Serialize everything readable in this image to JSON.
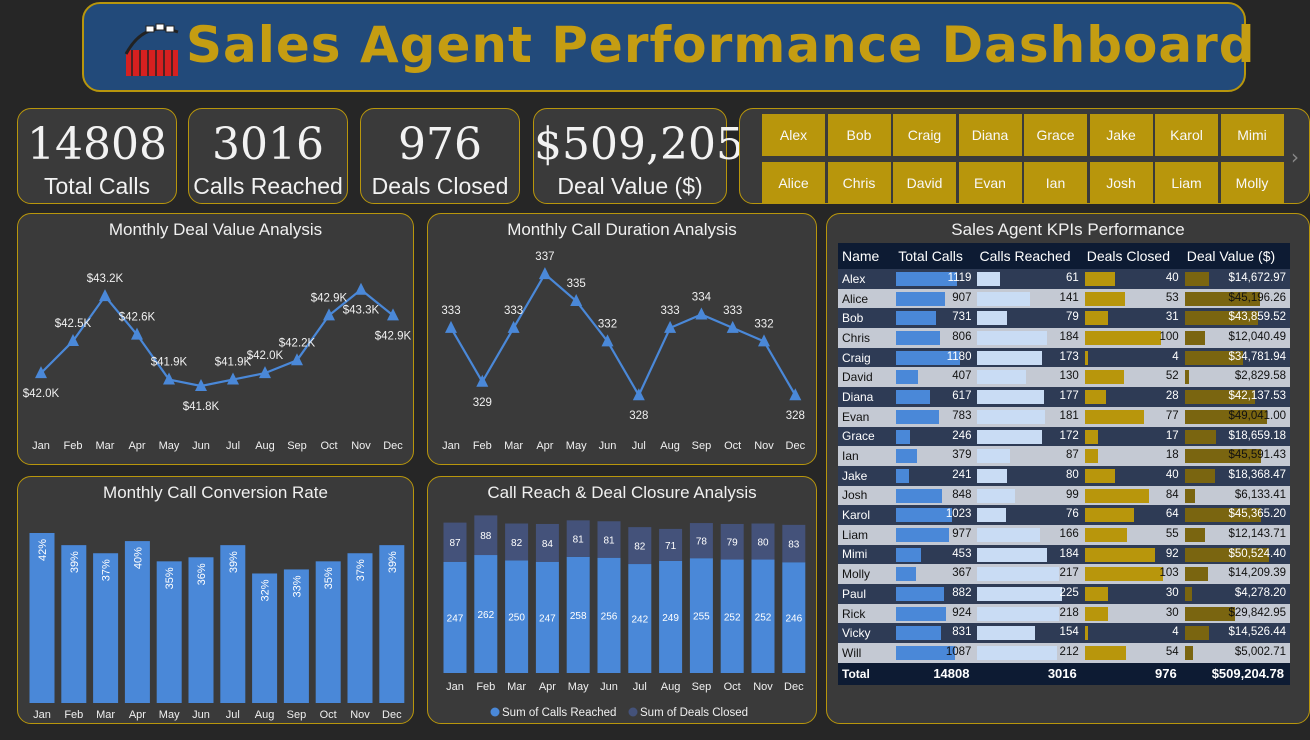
{
  "title": "Sales Agent Performance Dashboard",
  "kpis": [
    {
      "value": "14808",
      "label": "Total Calls"
    },
    {
      "value": "3016",
      "label": "Calls Reached"
    },
    {
      "value": "976",
      "label": "Deals Closed"
    },
    {
      "value": "$509,205",
      "label": "Deal Value ($)"
    }
  ],
  "agents": [
    "Alex",
    "Bob",
    "Craig",
    "Diana",
    "Grace",
    "Jake",
    "Karol",
    "Mimi",
    "Alice",
    "Chris",
    "David",
    "Evan",
    "Ian",
    "Josh",
    "Liam",
    "Molly"
  ],
  "months": [
    "Jan",
    "Feb",
    "Mar",
    "Apr",
    "May",
    "Jun",
    "Jul",
    "Aug",
    "Sep",
    "Oct",
    "Nov",
    "Dec"
  ],
  "chart_data": [
    {
      "type": "line",
      "title": "Monthly Deal Value Analysis",
      "categories": [
        "Jan",
        "Feb",
        "Mar",
        "Apr",
        "May",
        "Jun",
        "Jul",
        "Aug",
        "Sep",
        "Oct",
        "Nov",
        "Dec"
      ],
      "values": [
        42.0,
        42.5,
        43.2,
        42.6,
        41.9,
        41.8,
        41.9,
        42.0,
        42.2,
        42.9,
        43.3,
        42.9
      ],
      "labels": [
        "$42.0K",
        "$42.5K",
        "$43.2K",
        "$42.6K",
        "$41.9K",
        "$41.8K",
        "$41.9K",
        "$42.0K",
        "$42.2K",
        "$42.9K",
        "$43.3K",
        "$42.9K"
      ],
      "ylim": [
        41.55,
        43.42
      ]
    },
    {
      "type": "line",
      "title": "Monthly Call Duration Analysis",
      "categories": [
        "Jan",
        "Feb",
        "Mar",
        "Apr",
        "May",
        "Jun",
        "Jul",
        "Aug",
        "Sep",
        "Oct",
        "Nov",
        "Dec"
      ],
      "values": [
        333,
        329,
        333,
        337,
        335,
        332,
        328,
        333,
        334,
        333,
        332,
        328
      ],
      "labels": [
        "333",
        "329",
        "333",
        "337",
        "335",
        "332",
        "328",
        "333",
        "334",
        "333",
        "332",
        "328"
      ],
      "ylim": [
        327.2,
        337.6
      ]
    },
    {
      "type": "bar",
      "title": "Monthly Call Conversion Rate",
      "categories": [
        "Jan",
        "Feb",
        "Mar",
        "Apr",
        "May",
        "Jun",
        "Jul",
        "Aug",
        "Sep",
        "Oct",
        "Nov",
        "Dec"
      ],
      "values": [
        42,
        39,
        37,
        40,
        35,
        36,
        39,
        32,
        33,
        35,
        37,
        39
      ],
      "labels": [
        "42%",
        "39%",
        "37%",
        "40%",
        "35%",
        "36%",
        "39%",
        "32%",
        "33%",
        "35%",
        "37%",
        "39%"
      ],
      "ylim": [
        0,
        47
      ]
    },
    {
      "type": "bar",
      "stacked": true,
      "title": "Call Reach & Deal Closure Analysis",
      "categories": [
        "Jan",
        "Feb",
        "Mar",
        "Apr",
        "May",
        "Jun",
        "Jul",
        "Aug",
        "Sep",
        "Oct",
        "Nov",
        "Dec"
      ],
      "series": [
        {
          "name": "Sum of Calls Reached",
          "values": [
            247,
            262,
            250,
            247,
            258,
            256,
            242,
            249,
            255,
            252,
            252,
            246
          ]
        },
        {
          "name": "Sum of Deals Closed",
          "values": [
            87,
            88,
            82,
            84,
            81,
            81,
            82,
            71,
            78,
            79,
            80,
            83
          ]
        }
      ],
      "ylim": [
        0,
        362
      ]
    }
  ],
  "table": {
    "title": "Sales Agent KPIs Performance",
    "headers": [
      "Name",
      "Total Calls",
      "Calls Reached",
      "Deals Closed",
      "Deal Value ($)"
    ],
    "rows": [
      [
        "Alex",
        "1119",
        "61",
        "40",
        "$14,672.97"
      ],
      [
        "Alice",
        "907",
        "141",
        "53",
        "$45,196.26"
      ],
      [
        "Bob",
        "731",
        "79",
        "31",
        "$43,859.52"
      ],
      [
        "Chris",
        "806",
        "184",
        "100",
        "$12,040.49"
      ],
      [
        "Craig",
        "1180",
        "173",
        "4",
        "$34,781.94"
      ],
      [
        "David",
        "407",
        "130",
        "52",
        "$2,829.58"
      ],
      [
        "Diana",
        "617",
        "177",
        "28",
        "$42,137.53"
      ],
      [
        "Evan",
        "783",
        "181",
        "77",
        "$49,041.00"
      ],
      [
        "Grace",
        "246",
        "172",
        "17",
        "$18,659.18"
      ],
      [
        "Ian",
        "379",
        "87",
        "18",
        "$45,591.43"
      ],
      [
        "Jake",
        "241",
        "80",
        "40",
        "$18,368.47"
      ],
      [
        "Josh",
        "848",
        "99",
        "84",
        "$6,133.41"
      ],
      [
        "Karol",
        "1023",
        "76",
        "64",
        "$45,365.20"
      ],
      [
        "Liam",
        "977",
        "166",
        "55",
        "$12,143.71"
      ],
      [
        "Mimi",
        "453",
        "184",
        "92",
        "$50,524.40"
      ],
      [
        "Molly",
        "367",
        "217",
        "103",
        "$14,209.39"
      ],
      [
        "Paul",
        "882",
        "225",
        "30",
        "$4,278.20"
      ],
      [
        "Rick",
        "924",
        "218",
        "30",
        "$29,842.95"
      ],
      [
        "Vicky",
        "831",
        "154",
        "4",
        "$14,526.44"
      ],
      [
        "Will",
        "1087",
        "212",
        "54",
        "$5,002.71"
      ]
    ],
    "total": [
      "Total",
      "14808",
      "3016",
      "976",
      "$509,204.78"
    ]
  },
  "colors": {
    "blue": "#4a88d8",
    "lightblue": "#c9dcf4",
    "gold": "#b8960c",
    "darkblue": "#44527a"
  }
}
